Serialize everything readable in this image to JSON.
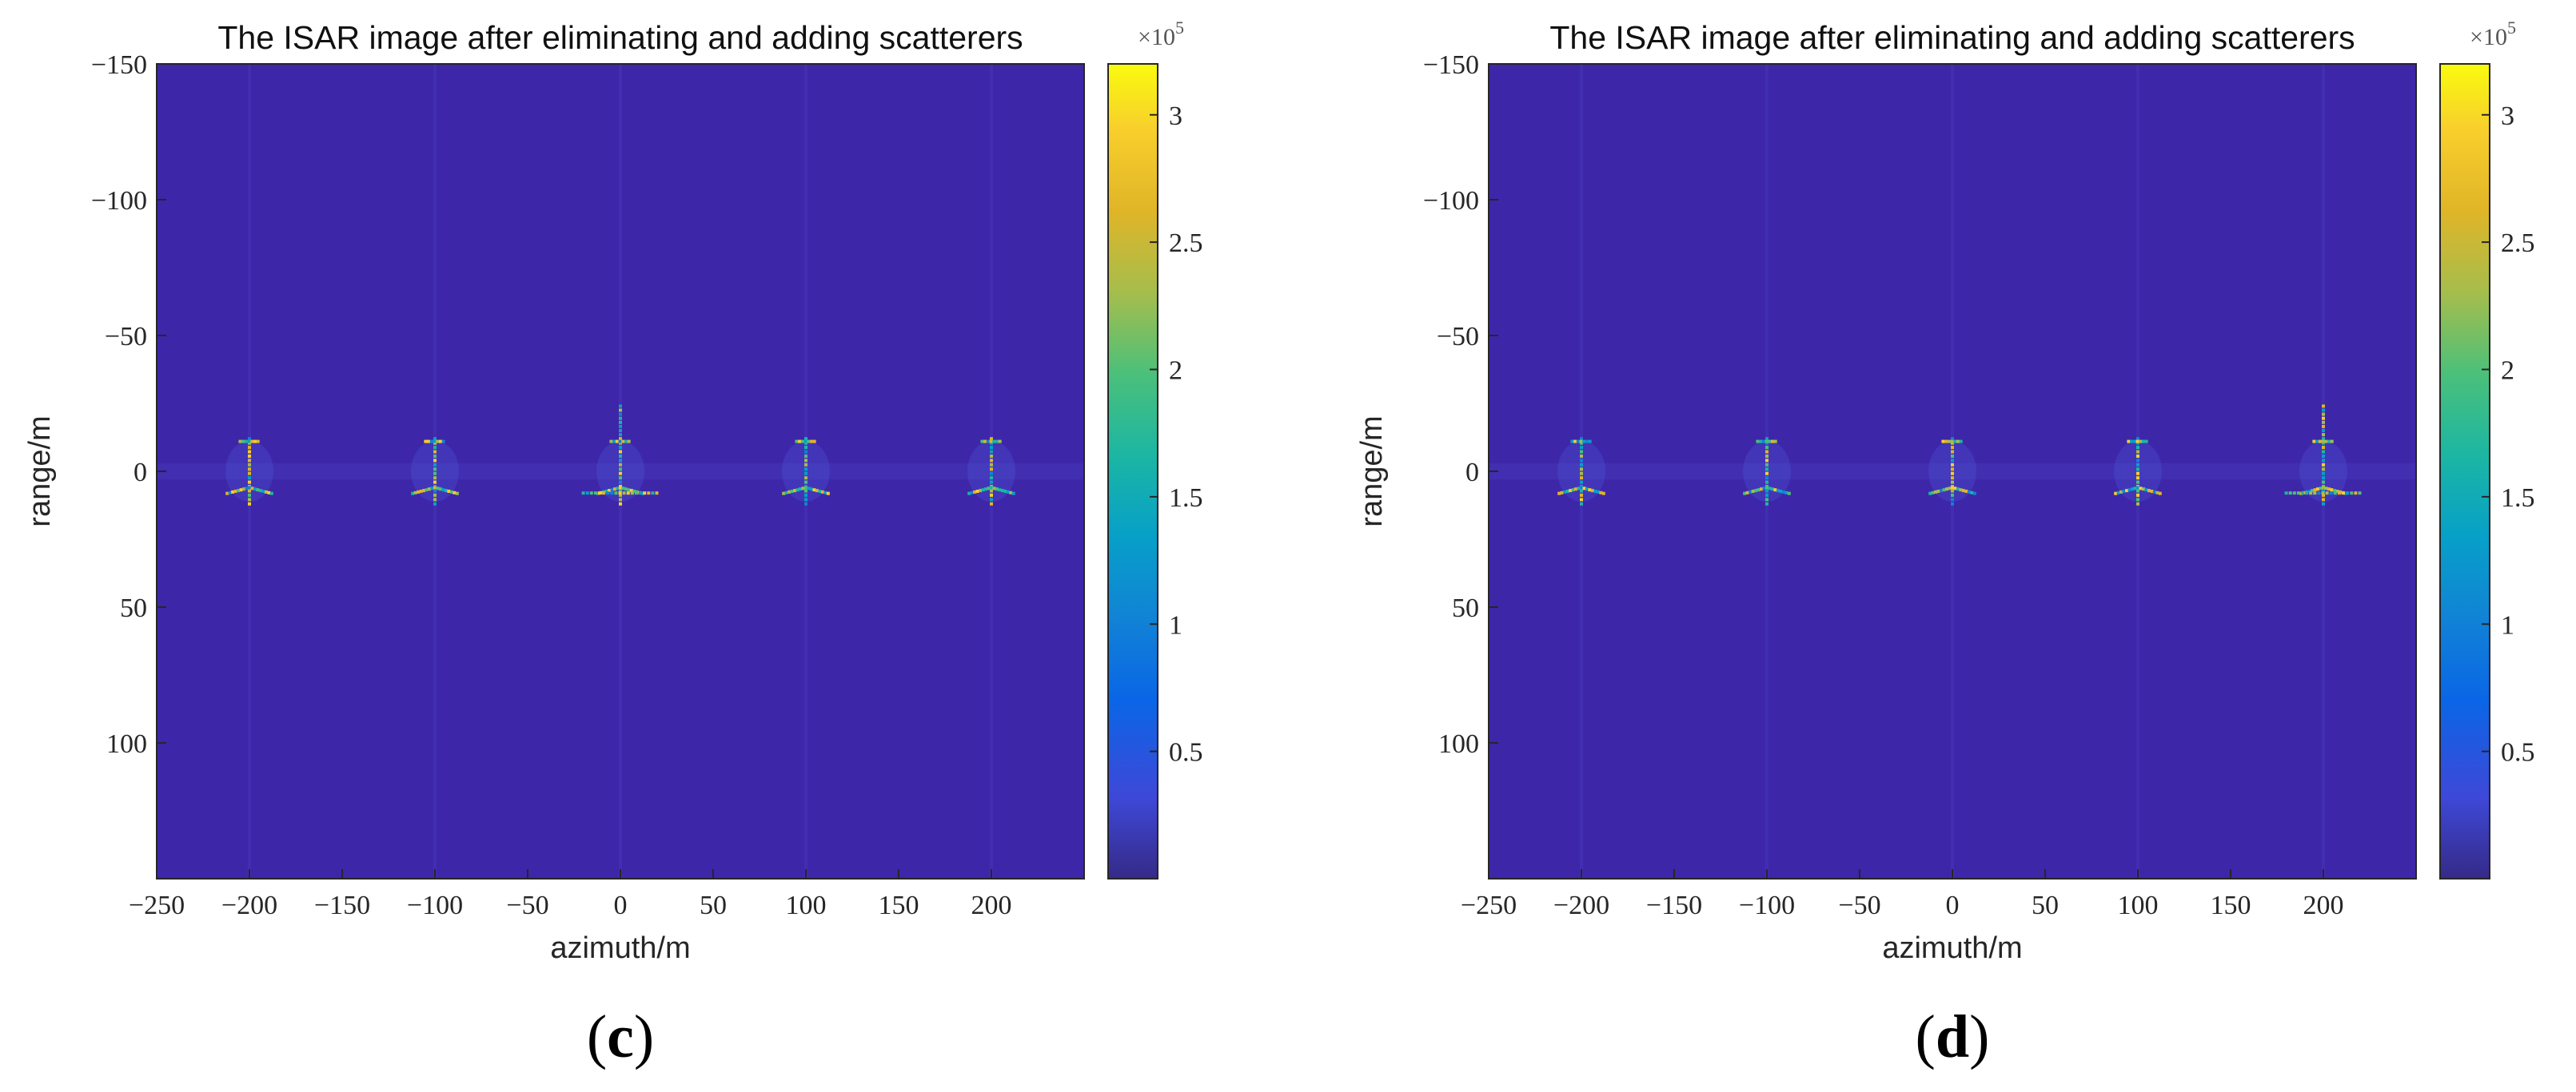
{
  "chart_data": [
    {
      "panel": "c",
      "type": "heatmap",
      "title": "The ISAR image after eliminating and adding scatterers",
      "xlabel": "azimuth/m",
      "ylabel": "range/m",
      "xlim": [
        -250,
        250
      ],
      "ylim": [
        -150,
        150
      ],
      "y_reversed": true,
      "xticks": [
        -250,
        -200,
        -150,
        -100,
        -50,
        0,
        50,
        100,
        150,
        200
      ],
      "yticks": [
        -150,
        -100,
        -50,
        0,
        50,
        100
      ],
      "colorbar": {
        "min": 0,
        "max": 320000,
        "ticks": [
          0.5,
          1,
          1.5,
          2,
          2.5,
          3
        ],
        "exponent_label": "×10",
        "exponent": "5"
      },
      "colormap": "parula",
      "background_color": "#3e26a8",
      "targets": [
        {
          "azimuth": -200,
          "range": 0,
          "variant": "normal"
        },
        {
          "azimuth": -100,
          "range": 0,
          "variant": "normal"
        },
        {
          "azimuth": 0,
          "range": 0,
          "variant": "modified"
        },
        {
          "azimuth": 100,
          "range": 0,
          "variant": "normal"
        },
        {
          "azimuth": 200,
          "range": 0,
          "variant": "normal"
        }
      ]
    },
    {
      "panel": "d",
      "type": "heatmap",
      "title": "The ISAR image after eliminating and adding scatterers",
      "xlabel": "azimuth/m",
      "ylabel": "range/m",
      "xlim": [
        -250,
        250
      ],
      "ylim": [
        -150,
        150
      ],
      "y_reversed": true,
      "xticks": [
        -250,
        -200,
        -150,
        -100,
        -50,
        0,
        50,
        100,
        150,
        200
      ],
      "yticks": [
        -150,
        -100,
        -50,
        0,
        50,
        100
      ],
      "colorbar": {
        "min": 0,
        "max": 320000,
        "ticks": [
          0.5,
          1,
          1.5,
          2,
          2.5,
          3
        ],
        "exponent_label": "×10",
        "exponent": "5"
      },
      "colormap": "parula",
      "background_color": "#3e26a8",
      "targets": [
        {
          "azimuth": -200,
          "range": 0,
          "variant": "normal"
        },
        {
          "azimuth": -100,
          "range": 0,
          "variant": "normal"
        },
        {
          "azimuth": 0,
          "range": 0,
          "variant": "normal"
        },
        {
          "azimuth": 100,
          "range": 0,
          "variant": "normal"
        },
        {
          "azimuth": 200,
          "range": 0,
          "variant": "modified"
        }
      ]
    }
  ],
  "panels": [
    {
      "label_open": "(",
      "label_letter": "c",
      "label_close": ")"
    },
    {
      "label_open": "(",
      "label_letter": "d",
      "label_close": ")"
    }
  ]
}
